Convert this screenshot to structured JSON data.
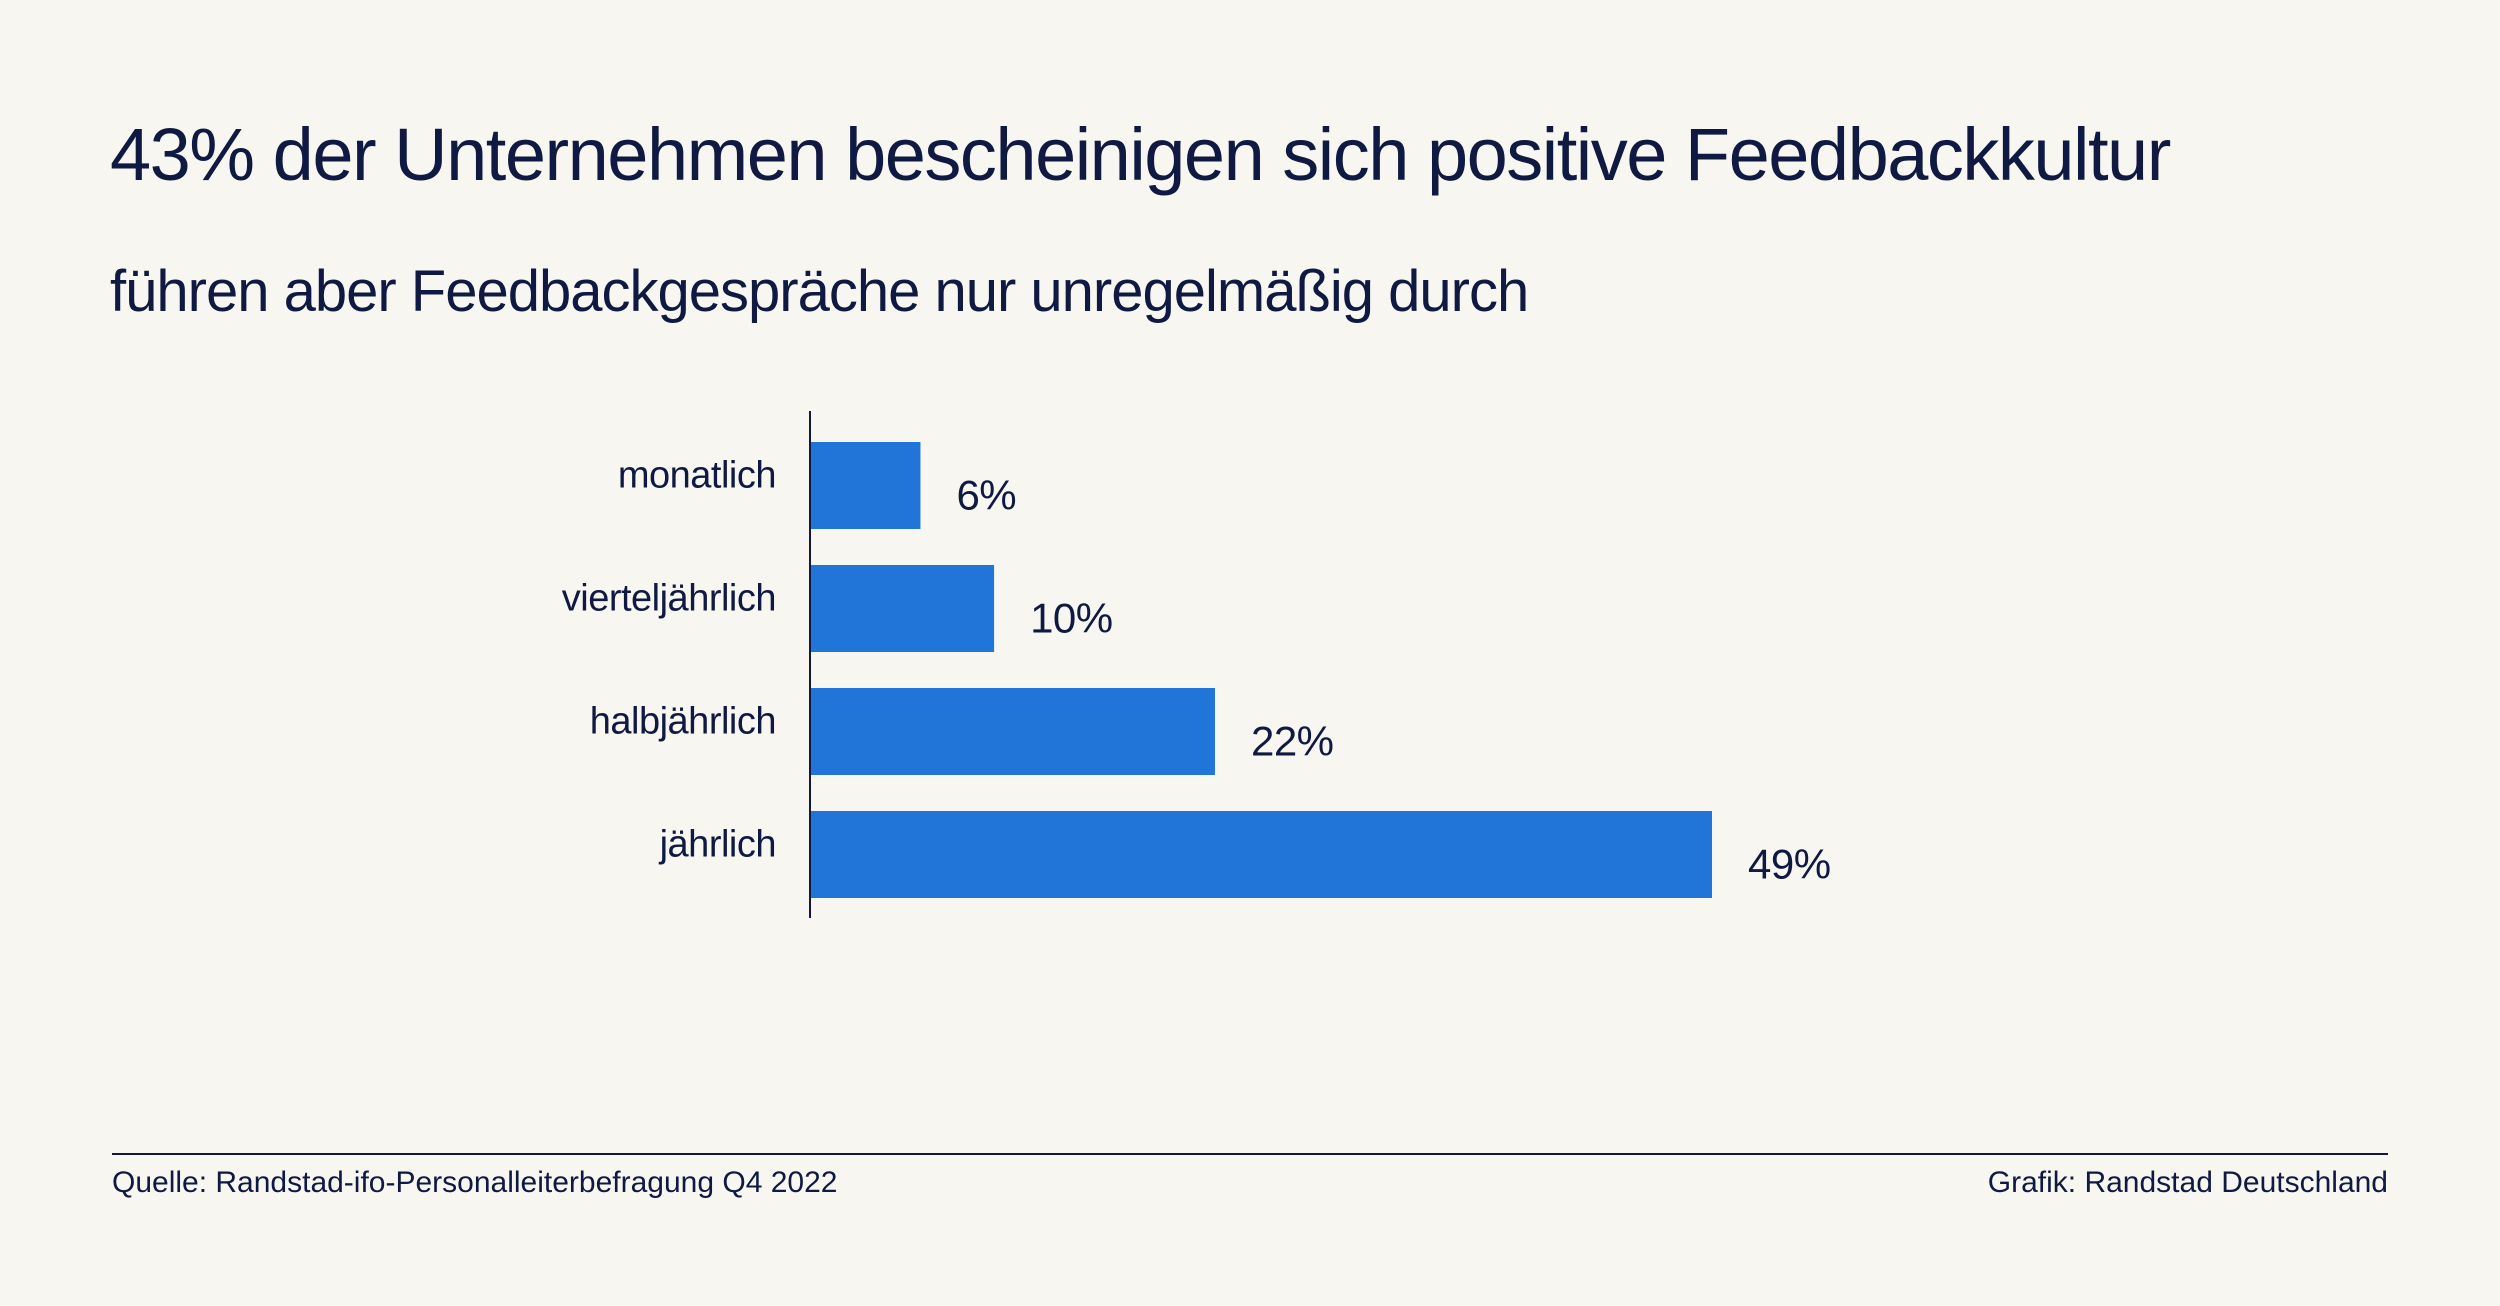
{
  "header": {
    "title": "43% der Unternehmen bescheinigen sich positive Feedbackkultur",
    "subtitle": "führen aber Feedbackgespräche nur unregelmäßig durch"
  },
  "chart_data": {
    "type": "bar",
    "orientation": "horizontal",
    "categories": [
      "monatlich",
      "vierteljährlich",
      "halbjährlich",
      "jährlich"
    ],
    "values": [
      6,
      10,
      22,
      49
    ],
    "value_labels": [
      "6%",
      "10%",
      "22%",
      "49%"
    ],
    "unit": "%",
    "title": "",
    "xlabel": "",
    "ylabel": "",
    "grid": false,
    "bar_color": "#2175d9"
  },
  "footer": {
    "source": "Quelle: Randstad-ifo-Personalleiterbefragung Q4 2022",
    "credit": "Grafik: Randstad Deutschland"
  },
  "colors": {
    "background": "#f7f6f1",
    "text": "#0f1941",
    "bar": "#2175d9"
  }
}
